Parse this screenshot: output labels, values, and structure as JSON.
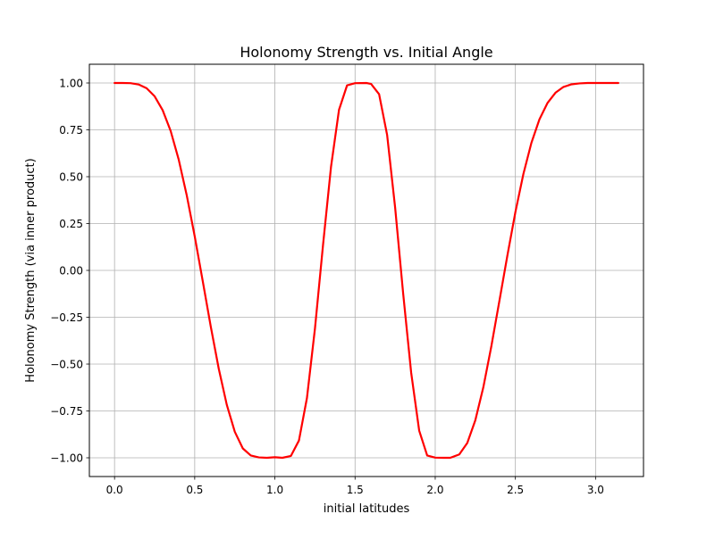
{
  "chart_data": {
    "type": "line",
    "title": "Holonomy Strength vs. Initial Angle",
    "xlabel": "initial latitudes",
    "ylabel": "Holonomy Strength (via inner product)",
    "xlim": [
      -0.157,
      3.299
    ],
    "ylim": [
      -1.1,
      1.1
    ],
    "xticks": [
      0.0,
      0.5,
      1.0,
      1.5,
      2.0,
      2.5,
      3.0
    ],
    "xtick_labels": [
      "0.0",
      "0.5",
      "1.0",
      "1.5",
      "2.0",
      "2.5",
      "3.0"
    ],
    "yticks": [
      -1.0,
      -0.75,
      -0.5,
      -0.25,
      0.0,
      0.25,
      0.5,
      0.75,
      1.0
    ],
    "ytick_labels": [
      "−1.00",
      "−0.75",
      "−0.50",
      "−0.25",
      "0.00",
      "0.25",
      "0.50",
      "0.75",
      "1.00"
    ],
    "grid": true,
    "series": [
      {
        "color": "#ff0000",
        "x": [
          0.0,
          0.05,
          0.1,
          0.15,
          0.2,
          0.25,
          0.3,
          0.35,
          0.4,
          0.45,
          0.5,
          0.55,
          0.6,
          0.65,
          0.7,
          0.75,
          0.8,
          0.85,
          0.9,
          0.95,
          1.0,
          1.047,
          1.1,
          1.15,
          1.2,
          1.25,
          1.3,
          1.35,
          1.4,
          1.45,
          1.5,
          1.571,
          1.6,
          1.65,
          1.7,
          1.75,
          1.8,
          1.85,
          1.9,
          1.95,
          2.0,
          2.05,
          2.094,
          2.15,
          2.2,
          2.25,
          2.3,
          2.35,
          2.4,
          2.45,
          2.5,
          2.55,
          2.6,
          2.65,
          2.7,
          2.75,
          2.8,
          2.85,
          2.9,
          2.95,
          3.0,
          3.05,
          3.1,
          3.142
        ],
        "y": [
          1.0,
          1.0,
          0.999,
          0.992,
          0.972,
          0.929,
          0.855,
          0.744,
          0.592,
          0.402,
          0.182,
          -0.057,
          -0.299,
          -0.525,
          -0.717,
          -0.861,
          -0.95,
          -0.988,
          -0.998,
          -1.0,
          -0.997,
          -1.0,
          -0.99,
          -0.908,
          -0.681,
          -0.31,
          0.133,
          0.552,
          0.857,
          0.987,
          0.999,
          1.0,
          0.995,
          0.94,
          0.723,
          0.335,
          -0.123,
          -0.546,
          -0.855,
          -0.988,
          -0.999,
          -1.0,
          -1.0,
          -0.982,
          -0.921,
          -0.8,
          -0.624,
          -0.405,
          -0.164,
          0.079,
          0.311,
          0.515,
          0.681,
          0.806,
          0.893,
          0.948,
          0.979,
          0.993,
          0.998,
          1.0,
          1.0,
          1.0,
          1.0,
          1.0
        ]
      }
    ]
  }
}
